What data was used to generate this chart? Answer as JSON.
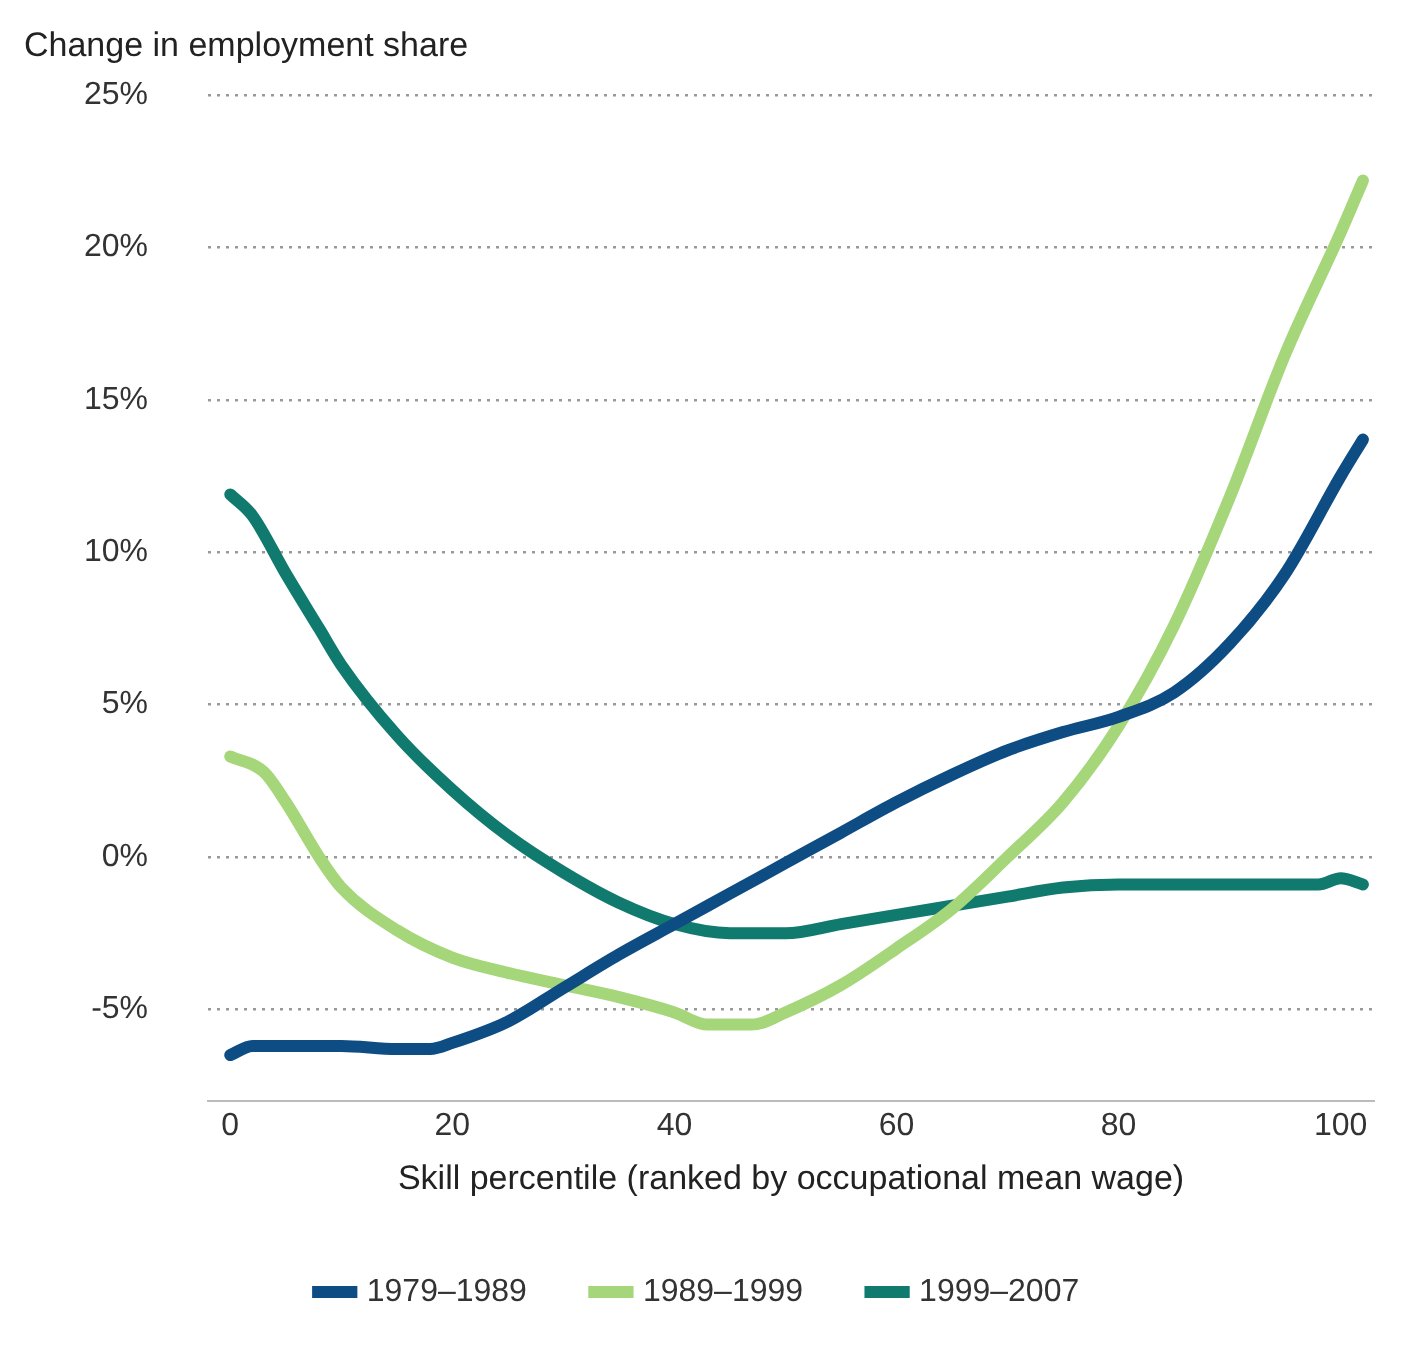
{
  "chart_data": {
    "type": "line",
    "title": "Change in employment share",
    "xlabel": "Skill percentile (ranked by occupational mean wage)",
    "xlim": [
      -2,
      103
    ],
    "xticks": [
      0,
      20,
      40,
      60,
      80,
      100
    ],
    "ylim": [
      -8,
      25
    ],
    "yticks": [
      {
        "value": -5,
        "label": "-5%"
      },
      {
        "value": 0,
        "label": "0%"
      },
      {
        "value": 5,
        "label": "5%"
      },
      {
        "value": 10,
        "label": "10%"
      },
      {
        "value": 15,
        "label": "15%"
      },
      {
        "value": 20,
        "label": "20%"
      },
      {
        "value": 25,
        "label": "25%"
      }
    ],
    "grid": "y",
    "legend": "bottom",
    "marker": "none",
    "line_style": "solid",
    "series": [
      {
        "name": "1979–1989",
        "color": "#0e4c84",
        "x": [
          0,
          2,
          10,
          15,
          18,
          20,
          25,
          30,
          35,
          40,
          45,
          50,
          55,
          60,
          65,
          70,
          75,
          80,
          85,
          90,
          95,
          100,
          102
        ],
        "values": [
          -6.5,
          -6.2,
          -6.2,
          -6.3,
          -6.3,
          -6.1,
          -5.4,
          -4.3,
          -3.2,
          -2.2,
          -1.2,
          -0.2,
          0.8,
          1.8,
          2.7,
          3.5,
          4.1,
          4.6,
          5.4,
          7,
          9.3,
          12.5,
          13.7
        ]
      },
      {
        "name": "1989–1999",
        "color": "#a6d67a",
        "x": [
          0,
          3,
          5,
          8,
          10,
          15,
          20,
          25,
          30,
          35,
          40,
          43,
          47,
          50,
          55,
          60,
          65,
          70,
          75,
          80,
          85,
          90,
          95,
          100,
          102
        ],
        "values": [
          3.3,
          2.8,
          1.8,
          0,
          -1,
          -2.4,
          -3.3,
          -3.8,
          -4.2,
          -4.6,
          -5.1,
          -5.5,
          -5.5,
          -5.1,
          -4.2,
          -3,
          -1.7,
          0,
          1.8,
          4.3,
          7.6,
          11.8,
          16.5,
          20.5,
          22.2
        ]
      },
      {
        "name": "1999–2007",
        "color": "#117a6e",
        "x": [
          0,
          2,
          5,
          8,
          10,
          15,
          20,
          25,
          30,
          35,
          40,
          45,
          50,
          55,
          60,
          65,
          70,
          75,
          80,
          90,
          98,
          100,
          102
        ],
        "values": [
          11.9,
          11.2,
          9.3,
          7.5,
          6.3,
          4,
          2.2,
          0.7,
          -0.5,
          -1.5,
          -2.2,
          -2.5,
          -2.5,
          -2.2,
          -1.9,
          -1.6,
          -1.3,
          -1,
          -0.9,
          -0.9,
          -0.9,
          -0.7,
          -0.9
        ]
      }
    ]
  }
}
